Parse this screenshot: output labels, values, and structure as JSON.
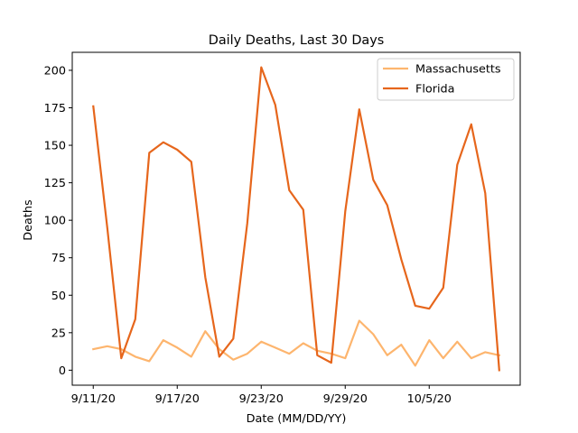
{
  "chart_data": {
    "type": "line",
    "title": "Daily Deaths, Last 30 Days",
    "xlabel": "Date (MM/DD/YY)",
    "ylabel": "Deaths",
    "x": [
      "9/11/20",
      "9/12/20",
      "9/13/20",
      "9/14/20",
      "9/15/20",
      "9/16/20",
      "9/17/20",
      "9/18/20",
      "9/19/20",
      "9/20/20",
      "9/21/20",
      "9/22/20",
      "9/23/20",
      "9/24/20",
      "9/25/20",
      "9/26/20",
      "9/27/20",
      "9/28/20",
      "9/29/20",
      "9/30/20",
      "10/1/20",
      "10/2/20",
      "10/3/20",
      "10/4/20",
      "10/5/20",
      "10/6/20",
      "10/7/20",
      "10/8/20",
      "10/9/20",
      "10/10/20"
    ],
    "xticks": [
      "9/11/20",
      "9/17/20",
      "9/23/20",
      "9/29/20",
      "10/5/20"
    ],
    "xtick_index": [
      0,
      6,
      12,
      18,
      24
    ],
    "yticks": [
      0,
      25,
      50,
      75,
      100,
      125,
      150,
      175,
      200
    ],
    "xlim": [
      -1.5,
      30.5
    ],
    "ylim": [
      -10,
      212
    ],
    "grid": false,
    "legend_position": "upper-right",
    "series": [
      {
        "name": "Massachusetts",
        "color": "#fdb56e",
        "values": [
          14,
          16,
          14,
          9,
          6,
          20,
          15,
          9,
          26,
          14,
          7,
          11,
          19,
          15,
          11,
          18,
          13,
          11,
          8,
          33,
          24,
          10,
          17,
          3,
          20,
          8,
          19,
          8,
          12,
          10
        ]
      },
      {
        "name": "Florida",
        "color": "#e6661c",
        "values": [
          176,
          95,
          8,
          34,
          145,
          152,
          147,
          139,
          62,
          9,
          21,
          98,
          202,
          177,
          120,
          107,
          10,
          5,
          106,
          174,
          127,
          110,
          74,
          43,
          41,
          55,
          137,
          164,
          118,
          0
        ]
      }
    ]
  }
}
